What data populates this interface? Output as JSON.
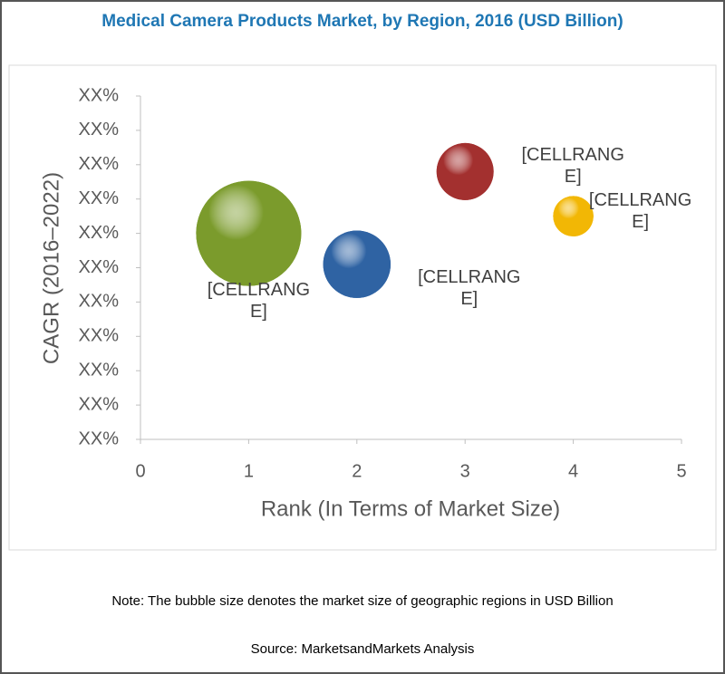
{
  "chart_data": {
    "type": "bubble",
    "title": "Medical Camera Products Market, by Region, 2016 (USD Billion)",
    "x_label": "Rank (In Terms of Market Size)",
    "y_label": "CAGR (2016–2022)",
    "xlim": [
      0,
      5
    ],
    "xticks": [
      0,
      1,
      2,
      3,
      4,
      5
    ],
    "ylim": [
      0,
      10
    ],
    "yticks": [
      {
        "value": 0,
        "label": "XX%"
      },
      {
        "value": 1,
        "label": "XX%"
      },
      {
        "value": 2,
        "label": "XX%"
      },
      {
        "value": 3,
        "label": "XX%"
      },
      {
        "value": 4,
        "label": "XX%"
      },
      {
        "value": 5,
        "label": "XX%"
      },
      {
        "value": 6,
        "label": "XX%"
      },
      {
        "value": 7,
        "label": "XX%"
      },
      {
        "value": 8,
        "label": "XX%"
      },
      {
        "value": 9,
        "label": "XX%"
      },
      {
        "value": 10,
        "label": "XX%"
      }
    ],
    "x": [
      1,
      2,
      3,
      4
    ],
    "values": [
      6,
      5.1,
      7.8,
      6.5
    ],
    "sizes": [
      3.4,
      1.4,
      1.0,
      0.5
    ],
    "colors": [
      "#7b9b2c",
      "#2f63a3",
      "#a3302f",
      "#f2b705"
    ],
    "labels": [
      "[CELLRANGE]",
      "[CELLRANGE]",
      "[CELLRANGE]",
      "[CELLRANGE]"
    ],
    "note": "Note: The bubble size denotes the market size of geographic regions in USD Billion",
    "source": "Source: MarketsandMarkets Analysis"
  }
}
